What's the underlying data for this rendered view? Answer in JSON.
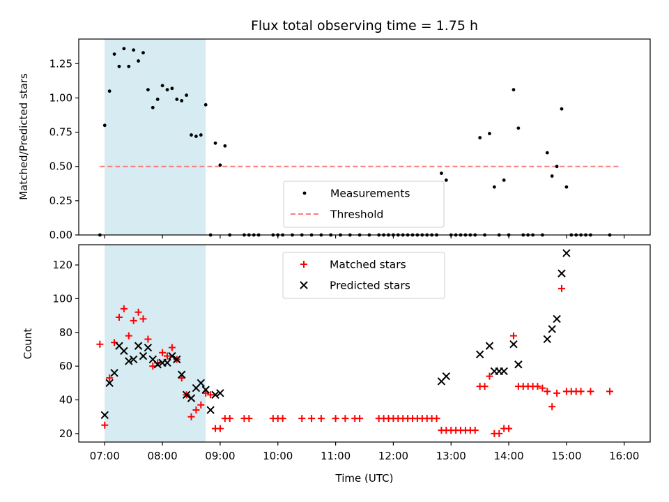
{
  "chart_data": {
    "type": "scatter",
    "title": "Flux total observing time = 1.75 h",
    "xlabel": "Time (UTC)",
    "x_unit": "hours UTC",
    "xlim": [
      "06:33",
      "16:27"
    ],
    "xticks": [
      "07:00",
      "08:00",
      "09:00",
      "10:00",
      "11:00",
      "12:00",
      "13:00",
      "14:00",
      "15:00",
      "16:00"
    ],
    "highlight_span": {
      "start": "07:00",
      "end": "08:45",
      "color": "#add8e6"
    },
    "panels": [
      {
        "name": "ratio",
        "ylabel": "Matched/Predicted stars",
        "ylim": [
          0,
          1.43
        ],
        "yticks": [
          "0.00",
          "0.25",
          "0.50",
          "0.75",
          "1.00",
          "1.25"
        ],
        "legend": {
          "placement": "lower center",
          "entries": [
            "Measurements",
            "Threshold"
          ]
        },
        "threshold": {
          "name": "Threshold",
          "value": 0.5,
          "x_range": [
            "06:55",
            "15:55"
          ],
          "color": "#ff7a7a"
        },
        "series": [
          {
            "name": "Measurements",
            "marker": "dot",
            "color": "#000000",
            "points": [
              [
                "06:55",
                0
              ],
              [
                "07:00",
                0.8
              ],
              [
                "07:05",
                1.05
              ],
              [
                "07:10",
                1.32
              ],
              [
                "07:15",
                1.23
              ],
              [
                "07:20",
                1.36
              ],
              [
                "07:25",
                1.23
              ],
              [
                "07:30",
                1.35
              ],
              [
                "07:35",
                1.27
              ],
              [
                "07:40",
                1.33
              ],
              [
                "07:45",
                1.06
              ],
              [
                "07:50",
                0.93
              ],
              [
                "07:55",
                0.99
              ],
              [
                "08:00",
                1.09
              ],
              [
                "08:05",
                1.06
              ],
              [
                "08:10",
                1.07
              ],
              [
                "08:15",
                0.99
              ],
              [
                "08:20",
                0.98
              ],
              [
                "08:25",
                1.02
              ],
              [
                "08:30",
                0.73
              ],
              [
                "08:35",
                0.72
              ],
              [
                "08:40",
                0.73
              ],
              [
                "08:45",
                0.95
              ],
              [
                "08:50",
                0
              ],
              [
                "08:55",
                0.67
              ],
              [
                "09:00",
                0.51
              ],
              [
                "09:05",
                0.65
              ],
              [
                "09:10",
                0
              ],
              [
                "09:25",
                0
              ],
              [
                "09:30",
                0
              ],
              [
                "09:35",
                0
              ],
              [
                "09:40",
                0
              ],
              [
                "09:55",
                0
              ],
              [
                "10:00",
                0
              ],
              [
                "10:05",
                0
              ],
              [
                "10:15",
                0
              ],
              [
                "10:25",
                0
              ],
              [
                "10:35",
                0
              ],
              [
                "10:45",
                0
              ],
              [
                "10:55",
                0
              ],
              [
                "11:05",
                0
              ],
              [
                "11:15",
                0
              ],
              [
                "11:25",
                0
              ],
              [
                "11:35",
                0
              ],
              [
                "11:45",
                0
              ],
              [
                "11:50",
                0
              ],
              [
                "11:55",
                0
              ],
              [
                "12:00",
                0
              ],
              [
                "12:05",
                0
              ],
              [
                "12:10",
                0
              ],
              [
                "12:15",
                0
              ],
              [
                "12:20",
                0
              ],
              [
                "12:25",
                0
              ],
              [
                "12:30",
                0
              ],
              [
                "12:35",
                0
              ],
              [
                "12:40",
                0
              ],
              [
                "12:45",
                0
              ],
              [
                "12:50",
                0.45
              ],
              [
                "12:55",
                0.4
              ],
              [
                "13:00",
                0
              ],
              [
                "13:05",
                0
              ],
              [
                "13:10",
                0
              ],
              [
                "13:15",
                0
              ],
              [
                "13:20",
                0
              ],
              [
                "13:25",
                0
              ],
              [
                "13:30",
                0.71
              ],
              [
                "13:35",
                0
              ],
              [
                "13:40",
                0.74
              ],
              [
                "13:45",
                0.35
              ],
              [
                "13:50",
                0
              ],
              [
                "13:55",
                0.4
              ],
              [
                "14:00",
                0
              ],
              [
                "14:05",
                1.06
              ],
              [
                "14:10",
                0.78
              ],
              [
                "14:15",
                0
              ],
              [
                "14:20",
                0
              ],
              [
                "14:25",
                0
              ],
              [
                "14:35",
                0
              ],
              [
                "14:40",
                0.6
              ],
              [
                "14:45",
                0.43
              ],
              [
                "14:50",
                0.5
              ],
              [
                "14:55",
                0.92
              ],
              [
                "15:00",
                0.35
              ],
              [
                "15:05",
                0
              ],
              [
                "15:10",
                0
              ],
              [
                "15:15",
                0
              ],
              [
                "15:20",
                0
              ],
              [
                "15:25",
                0
              ],
              [
                "15:45",
                0
              ]
            ]
          }
        ]
      },
      {
        "name": "counts",
        "ylabel": "Count",
        "ylim": [
          15,
          132
        ],
        "yticks": [
          "20",
          "40",
          "60",
          "80",
          "100",
          "120"
        ],
        "legend": {
          "placement": "upper center",
          "entries": [
            "Matched stars",
            "Predicted stars"
          ]
        },
        "series": [
          {
            "name": "Matched stars",
            "marker": "plus",
            "color": "#ff0000",
            "points": [
              [
                "06:55",
                73
              ],
              [
                "07:00",
                25
              ],
              [
                "07:05",
                53
              ],
              [
                "07:10",
                74
              ],
              [
                "07:15",
                89
              ],
              [
                "07:20",
                94
              ],
              [
                "07:25",
                78
              ],
              [
                "07:30",
                87
              ],
              [
                "07:35",
                92
              ],
              [
                "07:40",
                88
              ],
              [
                "07:45",
                76
              ],
              [
                "07:50",
                60
              ],
              [
                "07:55",
                62
              ],
              [
                "08:00",
                68
              ],
              [
                "08:05",
                66
              ],
              [
                "08:10",
                71
              ],
              [
                "08:15",
                64
              ],
              [
                "08:20",
                53
              ],
              [
                "08:25",
                43
              ],
              [
                "08:30",
                30
              ],
              [
                "08:35",
                34
              ],
              [
                "08:40",
                37
              ],
              [
                "08:45",
                44
              ],
              [
                "08:50",
                43
              ],
              [
                "08:55",
                23
              ],
              [
                "09:00",
                23
              ],
              [
                "09:05",
                29
              ],
              [
                "09:10",
                29
              ],
              [
                "09:25",
                29
              ],
              [
                "09:30",
                29
              ],
              [
                "09:55",
                29
              ],
              [
                "10:00",
                29
              ],
              [
                "10:05",
                29
              ],
              [
                "10:25",
                29
              ],
              [
                "10:35",
                29
              ],
              [
                "10:45",
                29
              ],
              [
                "11:00",
                29
              ],
              [
                "11:10",
                29
              ],
              [
                "11:20",
                29
              ],
              [
                "11:25",
                29
              ],
              [
                "11:45",
                29
              ],
              [
                "11:50",
                29
              ],
              [
                "11:55",
                29
              ],
              [
                "12:00",
                29
              ],
              [
                "12:05",
                29
              ],
              [
                "12:10",
                29
              ],
              [
                "12:15",
                29
              ],
              [
                "12:20",
                29
              ],
              [
                "12:25",
                29
              ],
              [
                "12:30",
                29
              ],
              [
                "12:35",
                29
              ],
              [
                "12:40",
                29
              ],
              [
                "12:45",
                29
              ],
              [
                "12:50",
                22
              ],
              [
                "12:55",
                22
              ],
              [
                "13:00",
                22
              ],
              [
                "13:05",
                22
              ],
              [
                "13:10",
                22
              ],
              [
                "13:15",
                22
              ],
              [
                "13:20",
                22
              ],
              [
                "13:25",
                22
              ],
              [
                "13:30",
                48
              ],
              [
                "13:35",
                48
              ],
              [
                "13:40",
                54
              ],
              [
                "13:45",
                20
              ],
              [
                "13:50",
                20
              ],
              [
                "13:55",
                23
              ],
              [
                "14:00",
                23
              ],
              [
                "14:05",
                78
              ],
              [
                "14:10",
                48
              ],
              [
                "14:15",
                48
              ],
              [
                "14:20",
                48
              ],
              [
                "14:25",
                48
              ],
              [
                "14:30",
                48
              ],
              [
                "14:35",
                47
              ],
              [
                "14:40",
                45
              ],
              [
                "14:45",
                36
              ],
              [
                "14:50",
                44
              ],
              [
                "14:55",
                106
              ],
              [
                "15:00",
                45
              ],
              [
                "15:05",
                45
              ],
              [
                "15:10",
                45
              ],
              [
                "15:15",
                45
              ],
              [
                "15:25",
                45
              ],
              [
                "15:45",
                45
              ]
            ]
          },
          {
            "name": "Predicted stars",
            "marker": "x",
            "color": "#000000",
            "points": [
              [
                "07:00",
                31
              ],
              [
                "07:05",
                50
              ],
              [
                "07:10",
                56
              ],
              [
                "07:15",
                72
              ],
              [
                "07:20",
                69
              ],
              [
                "07:25",
                63
              ],
              [
                "07:30",
                64
              ],
              [
                "07:35",
                72
              ],
              [
                "07:40",
                66
              ],
              [
                "07:45",
                71
              ],
              [
                "07:50",
                64
              ],
              [
                "07:55",
                61
              ],
              [
                "08:00",
                62
              ],
              [
                "08:05",
                62
              ],
              [
                "08:10",
                66
              ],
              [
                "08:15",
                64
              ],
              [
                "08:20",
                55
              ],
              [
                "08:25",
                43
              ],
              [
                "08:30",
                41
              ],
              [
                "08:35",
                47
              ],
              [
                "08:40",
                50
              ],
              [
                "08:45",
                46
              ],
              [
                "08:50",
                34
              ],
              [
                "08:55",
                43
              ],
              [
                "09:00",
                44
              ],
              [
                "12:50",
                51
              ],
              [
                "12:55",
                54
              ],
              [
                "13:30",
                67
              ],
              [
                "13:40",
                72
              ],
              [
                "13:45",
                57
              ],
              [
                "13:50",
                57
              ],
              [
                "13:55",
                57
              ],
              [
                "14:05",
                73
              ],
              [
                "14:10",
                61
              ],
              [
                "14:40",
                76
              ],
              [
                "14:45",
                82
              ],
              [
                "14:50",
                88
              ],
              [
                "14:55",
                115
              ],
              [
                "15:00",
                127
              ]
            ]
          }
        ]
      }
    ]
  }
}
